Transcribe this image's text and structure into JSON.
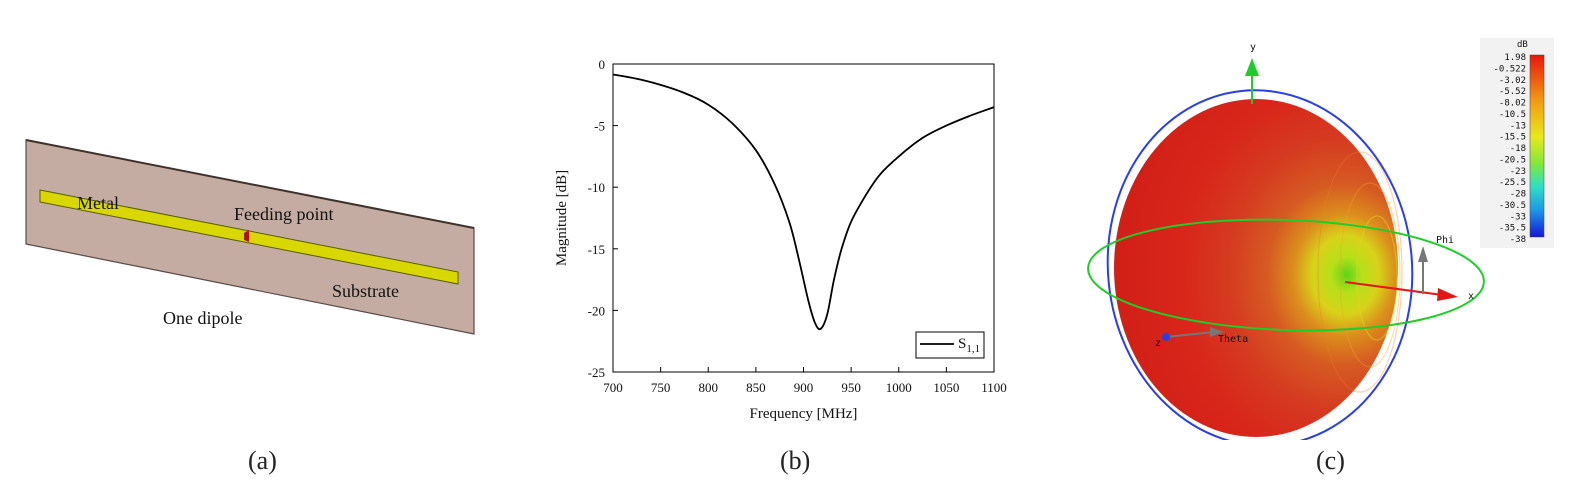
{
  "figure_a": {
    "label_metal": "Metal",
    "label_feeding": "Feeding point",
    "label_substrate": "Substrate",
    "label_dipole": "One dipole",
    "caption": "(a)",
    "colors": {
      "substrate": "#c4aca2",
      "metal": "#d8d800",
      "feed": "#b01515"
    }
  },
  "figure_b": {
    "caption": "(b)",
    "chart_data": {
      "type": "line",
      "xlabel": "Frequency [MHz]",
      "ylabel": "Magnitude [dB]",
      "xlim": [
        700,
        1100
      ],
      "ylim": [
        -25,
        0
      ],
      "xticks": [
        "700",
        "750",
        "800",
        "850",
        "900",
        "950",
        "1000",
        "1050",
        "1100"
      ],
      "yticks": [
        "0",
        "-5",
        "-10",
        "-15",
        "-20",
        "-25"
      ],
      "legend_position": "bottom-right",
      "series": [
        {
          "name": "S1,1",
          "legend_main": "S",
          "legend_sub": "1,1",
          "color": "#000000",
          "x": [
            700,
            725,
            750,
            775,
            800,
            825,
            850,
            870,
            885,
            895,
            905,
            912,
            918,
            925,
            932,
            940,
            950,
            965,
            980,
            1000,
            1025,
            1050,
            1075,
            1100
          ],
          "y": [
            -0.85,
            -1.2,
            -1.7,
            -2.35,
            -3.3,
            -4.8,
            -7.0,
            -9.8,
            -12.8,
            -15.8,
            -19.2,
            -21.0,
            -21.5,
            -20.3,
            -17.5,
            -15.0,
            -12.8,
            -10.7,
            -9.0,
            -7.5,
            -6.0,
            -5.0,
            -4.2,
            -3.5
          ]
        }
      ]
    }
  },
  "figure_c": {
    "caption": "(c)",
    "axis_y": "y",
    "axis_x": "x",
    "axis_z": "z",
    "label_theta": "Theta",
    "label_phi": "Phi",
    "colorbar": {
      "unit": "dB",
      "ticks": [
        "1.98",
        "-0.522",
        "-3.02",
        "-5.52",
        "-8.02",
        "-10.5",
        "-13",
        "-15.5",
        "-18",
        "-20.5",
        "-23",
        "-25.5",
        "-28",
        "-30.5",
        "-33",
        "-35.5",
        "-38"
      ]
    }
  }
}
